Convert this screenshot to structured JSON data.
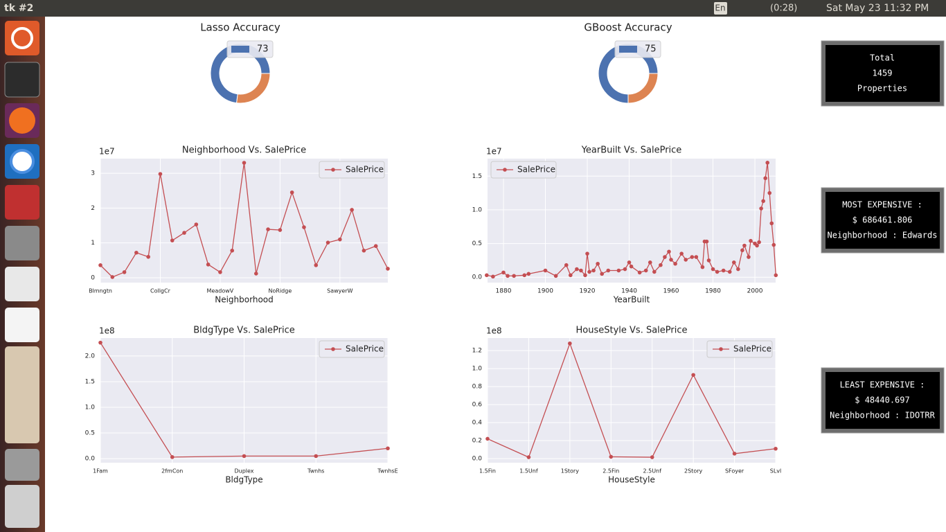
{
  "top_bar": {
    "app": "tk #2",
    "lang": "En",
    "battery": "(0:28)",
    "clock": "Sat May 23 11:32 PM"
  },
  "chart_data": [
    {
      "type": "pie",
      "title": "Lasso Accuracy",
      "categories": [
        "73",
        null
      ],
      "values": [
        73,
        27
      ],
      "colors": [
        "#4c72b0",
        "#dd8452"
      ],
      "donut": true
    },
    {
      "type": "pie",
      "title": "GBoost Accuracy",
      "categories": [
        "75",
        null
      ],
      "values": [
        75,
        25
      ],
      "colors": [
        "#4c72b0",
        "#dd8452"
      ],
      "donut": true
    },
    {
      "type": "line",
      "title": "Neighborhood Vs. SalePrice",
      "x_label": "Neighborhood",
      "offset_label": "1e7",
      "legend": "upper right",
      "grid": true,
      "categories": [
        "Blmngtn",
        null,
        null,
        null,
        null,
        "CollgCr",
        null,
        null,
        null,
        null,
        "MeadowV",
        null,
        null,
        null,
        null,
        "NoRidge",
        null,
        null,
        null,
        null,
        "SawyerW",
        null,
        null,
        null,
        null
      ],
      "series": [
        {
          "name": "SalePrice",
          "color": "#c44e52",
          "values": [
            0.36,
            0.02,
            0.16,
            0.72,
            0.6,
            2.98,
            1.07,
            1.29,
            1.53,
            0.38,
            0.16,
            0.78,
            3.3,
            0.12,
            1.39,
            1.37,
            2.45,
            1.45,
            0.36,
            1.01,
            1.1,
            1.95,
            0.78,
            0.91,
            0.26
          ]
        }
      ],
      "ylim": [
        -0.14,
        3.42
      ],
      "yticks": [
        0,
        1,
        2,
        3
      ]
    },
    {
      "type": "line",
      "title": "YearBuilt Vs. SalePrice",
      "x_label": "YearBuilt",
      "offset_label": "1e7",
      "legend": "upper left",
      "grid": true,
      "x": [
        1872,
        1875,
        1880,
        1882,
        1885,
        1890,
        1892,
        1900,
        1905,
        1910,
        1912,
        1915,
        1917,
        1919,
        1920,
        1921,
        1923,
        1925,
        1927,
        1930,
        1935,
        1938,
        1940,
        1941,
        1945,
        1948,
        1950,
        1952,
        1955,
        1957,
        1959,
        1960,
        1962,
        1965,
        1967,
        1970,
        1972,
        1975,
        1976,
        1977,
        1978,
        1980,
        1982,
        1985,
        1988,
        1990,
        1992,
        1994,
        1995,
        1997,
        1998,
        2000,
        2001,
        2002,
        2003,
        2004,
        2005,
        2006,
        2007,
        2008,
        2009,
        2010
      ],
      "series": [
        {
          "name": "SalePrice",
          "color": "#c44e52",
          "values": [
            0.03,
            0.01,
            0.07,
            0.02,
            0.02,
            0.03,
            0.05,
            0.1,
            0.02,
            0.18,
            0.03,
            0.12,
            0.1,
            0.03,
            0.35,
            0.08,
            0.1,
            0.2,
            0.05,
            0.1,
            0.1,
            0.12,
            0.22,
            0.16,
            0.07,
            0.1,
            0.22,
            0.08,
            0.18,
            0.3,
            0.38,
            0.26,
            0.2,
            0.35,
            0.26,
            0.3,
            0.3,
            0.15,
            0.53,
            0.53,
            0.25,
            0.12,
            0.08,
            0.1,
            0.08,
            0.22,
            0.12,
            0.4,
            0.47,
            0.3,
            0.54,
            0.5,
            0.47,
            0.52,
            1.02,
            1.13,
            1.47,
            1.7,
            1.25,
            0.8,
            0.48,
            0.03
          ]
        }
      ],
      "xlim": [
        1872.4,
        2009.9
      ],
      "xticks": [
        1880,
        1900,
        1920,
        1940,
        1960,
        1980,
        2000
      ],
      "ylim": [
        -0.08,
        1.76
      ],
      "yticks": [
        {
          "value": 0,
          "label": "0.0"
        },
        0.5,
        {
          "value": 1,
          "label": "1.0"
        },
        1.5
      ]
    },
    {
      "type": "line",
      "title": "BldgType Vs. SalePrice",
      "x_label": "BldgType",
      "offset_label": "1e8",
      "legend": "upper right",
      "grid": true,
      "categories": [
        "1Fam",
        "2fmCon",
        "Duplex",
        "Twnhs",
        "TwnhsE"
      ],
      "series": [
        {
          "name": "SalePrice",
          "color": "#c44e52",
          "values": [
            2.26,
            0.03,
            0.05,
            0.05,
            0.2
          ]
        }
      ],
      "ylim": [
        -0.08,
        2.35
      ],
      "yticks": [
        {
          "value": 0,
          "label": "0.0"
        },
        0.5,
        {
          "value": 1,
          "label": "1.0"
        },
        1.5,
        {
          "value": 2,
          "label": "2.0"
        }
      ]
    },
    {
      "type": "line",
      "title": "HouseStyle Vs. SalePrice",
      "x_label": "HouseStyle",
      "offset_label": "1e8",
      "legend": "upper right",
      "grid": true,
      "categories": [
        "1.5Fin",
        "1.5Unf",
        "1Story",
        "2.5Fin",
        "2.5Unf",
        "2Story",
        "SFoyer",
        "SLvl"
      ],
      "series": [
        {
          "name": "SalePrice",
          "color": "#c44e52",
          "values": [
            0.22,
            0.015,
            1.28,
            0.02,
            0.015,
            0.93,
            0.055,
            0.11
          ]
        }
      ],
      "ylim": [
        -0.046,
        1.34
      ],
      "yticks": [
        {
          "value": 0,
          "label": "0.0"
        },
        0.2,
        0.4,
        0.6,
        0.8,
        {
          "value": 1,
          "label": "1.0"
        },
        1.2
      ]
    }
  ],
  "info_boxes": [
    {
      "lines": [
        "Total",
        "1459",
        "Properties"
      ]
    },
    {
      "lines": [
        "MOST EXPENSIVE :",
        "$  686461.806",
        "Neighborhood : Edwards"
      ]
    },
    {
      "lines": [
        "LEAST EXPENSIVE :",
        "$ 48440.697",
        "Neighborhood : IDOTRR"
      ]
    }
  ]
}
